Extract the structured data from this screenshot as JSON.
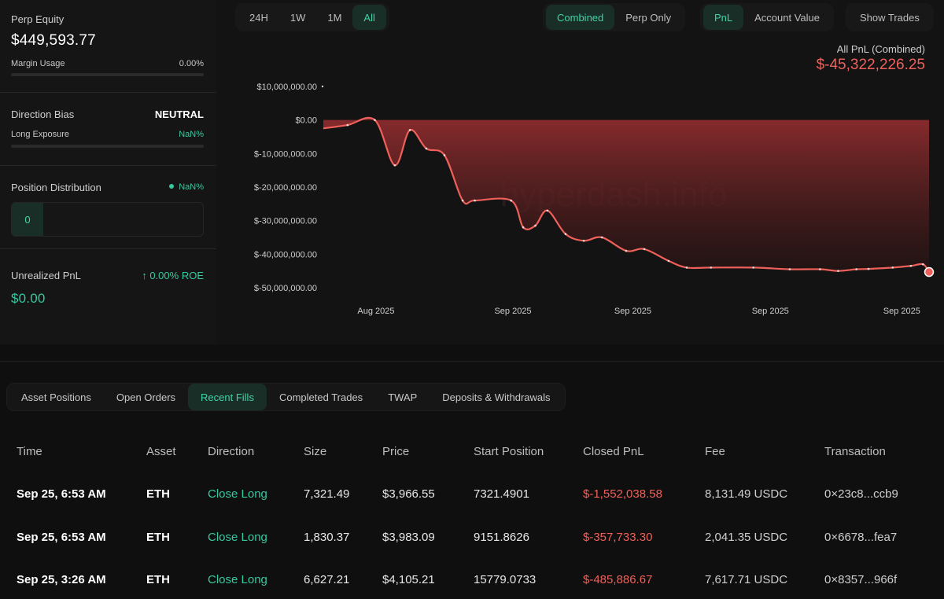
{
  "summary": {
    "perp_equity_label": "Perp Equity",
    "perp_equity_value": "$449,593.77",
    "margin_usage_label": "Margin Usage",
    "margin_usage_value": "0.00%",
    "margin_usage_fraction": 0,
    "direction_bias_label": "Direction Bias",
    "direction_bias_value": "NEUTRAL",
    "long_exposure_label": "Long Exposure",
    "long_exposure_value": "NaN%",
    "position_distribution_label": "Position Distribution",
    "position_distribution_value": "NaN%",
    "position_count": "0",
    "unrealized_pnl_label": "Unrealized PnL",
    "roe_value": "0.00% ROE",
    "unrealized_pnl_value": "$0.00"
  },
  "chart_controls": {
    "ranges": [
      "24H",
      "1W",
      "1M",
      "All"
    ],
    "active_range": "All",
    "modes": [
      "Combined",
      "Perp Only"
    ],
    "active_mode": "Combined",
    "metrics": [
      "PnL",
      "Account Value"
    ],
    "active_metric": "PnL",
    "show_trades_label": "Show Trades"
  },
  "chart_header": {
    "title": "All PnL (Combined)",
    "total": "$-45,322,226.25"
  },
  "chart_data": {
    "type": "area",
    "title": "All PnL (Combined)",
    "ylabel": "",
    "xlabel": "",
    "ylim": [
      -50000000,
      10000000
    ],
    "yticks": [
      10000000,
      0,
      -10000000,
      -20000000,
      -30000000,
      -40000000,
      -50000000
    ],
    "ytick_labels": [
      "$10,000,000.00",
      "$0.00",
      "$-10,000,000.00",
      "$-20,000,000.00",
      "$-30,000,000.00",
      "$-40,000,000.00",
      "$-50,000,000.00"
    ],
    "xtick_labels": [
      "Aug 2025",
      "Sep 2025",
      "Sep 2025",
      "Sep 2025",
      "Sep 2025"
    ],
    "xtick_positions": [
      0.087,
      0.313,
      0.511,
      0.738,
      0.955
    ],
    "grid": false,
    "series": [
      {
        "name": "PnL",
        "color": "#f0605a",
        "x": [
          0,
          0.04,
          0.085,
          0.118,
          0.143,
          0.17,
          0.2,
          0.23,
          0.25,
          0.31,
          0.33,
          0.35,
          0.37,
          0.4,
          0.43,
          0.46,
          0.5,
          0.53,
          0.57,
          0.6,
          0.64,
          0.71,
          0.77,
          0.82,
          0.85,
          0.88,
          0.9,
          0.94,
          0.97,
          0.99,
          1.0
        ],
        "y": [
          -2500000,
          -1500000,
          0,
          -13500000,
          -3000000,
          -8500000,
          -10500000,
          -24000000,
          -24000000,
          -24000000,
          -32000000,
          -31500000,
          -27000000,
          -34000000,
          -36000000,
          -35000000,
          -39000000,
          -38500000,
          -42000000,
          -44000000,
          -44000000,
          -44000000,
          -44500000,
          -44500000,
          -45000000,
          -44500000,
          -44400000,
          -44000000,
          -43500000,
          -43000000,
          -45322226
        ]
      }
    ]
  },
  "tabs": [
    "Asset Positions",
    "Open Orders",
    "Recent Fills",
    "Completed Trades",
    "TWAP",
    "Deposits & Withdrawals"
  ],
  "active_tab": "Recent Fills",
  "table": {
    "headers": [
      "Time",
      "Asset",
      "Direction",
      "Size",
      "Price",
      "Start Position",
      "Closed PnL",
      "Fee",
      "Transaction"
    ],
    "rows": [
      [
        "Sep 25, 6:53 AM",
        "ETH",
        "Close Long",
        "7,321.49",
        "$3,966.55",
        "7321.4901",
        "$-1,552,038.58",
        "8,131.49 USDC",
        "0×23c8...ccb9"
      ],
      [
        "Sep 25, 6:53 AM",
        "ETH",
        "Close Long",
        "1,830.37",
        "$3,983.09",
        "9151.8626",
        "$-357,733.30",
        "2,041.35 USDC",
        "0×6678...fea7"
      ],
      [
        "Sep 25, 3:26 AM",
        "ETH",
        "Close Long",
        "6,627.21",
        "$4,105.21",
        "15779.0733",
        "$-485,886.67",
        "7,617.71 USDC",
        "0×8357...966f"
      ]
    ]
  }
}
